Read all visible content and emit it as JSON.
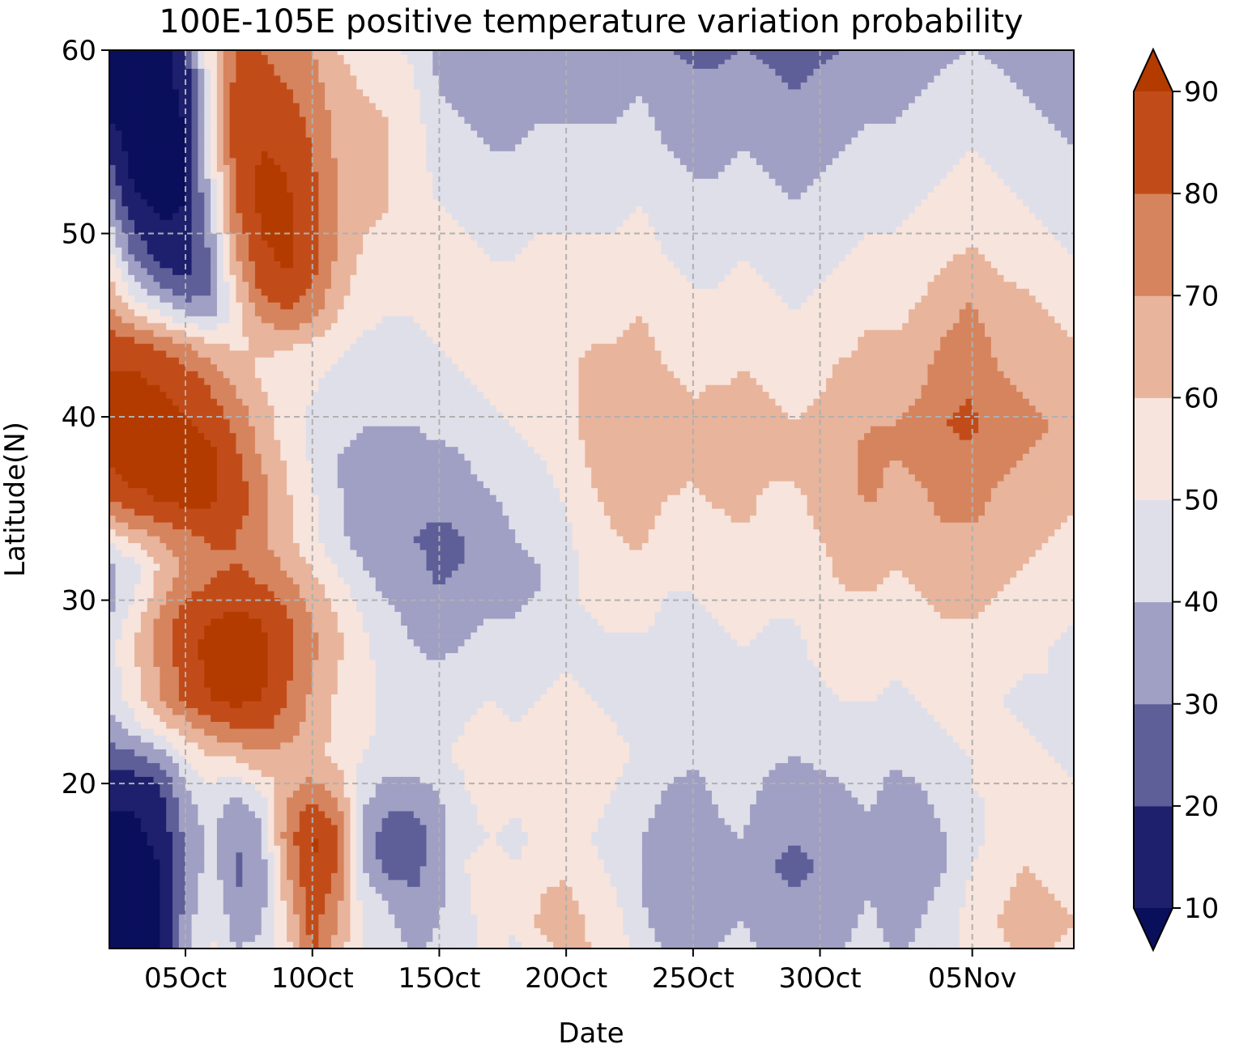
{
  "chart_data": {
    "type": "heatmap",
    "title": "100E-105E positive temperature variation probability",
    "xlabel": "Date",
    "ylabel": "Latitude(N)",
    "x_ticks": [
      "05Oct",
      "10Oct",
      "15Oct",
      "20Oct",
      "25Oct",
      "30Oct",
      "05Nov"
    ],
    "x_tick_dates": [
      "2020-10-05",
      "2020-10-10",
      "2020-10-15",
      "2020-10-20",
      "2020-10-25",
      "2020-10-30",
      "2020-11-05"
    ],
    "xlim": [
      "2020-10-02",
      "2020-11-09"
    ],
    "y_ticks": [
      20,
      30,
      40,
      50,
      60
    ],
    "ylim": [
      11,
      60
    ],
    "grid": true,
    "colorbar": {
      "levels": [
        10,
        20,
        30,
        40,
        50,
        60,
        70,
        80,
        90
      ],
      "tick_labels": [
        "10",
        "20",
        "30",
        "40",
        "50",
        "60",
        "70",
        "80",
        "90"
      ],
      "colors": [
        "#0a0f5c",
        "#1e206e",
        "#5e5f99",
        "#a09fc4",
        "#dfdfea",
        "#f7e4dc",
        "#e8b49b",
        "#d6845e",
        "#c24c19",
        "#b43b00"
      ],
      "extend": "both"
    },
    "grid_days": [
      2,
      3,
      4,
      5,
      6,
      7,
      8,
      9,
      10,
      11,
      12,
      13,
      14,
      15,
      16,
      17,
      18,
      19,
      20,
      21,
      22,
      23,
      24,
      25,
      26,
      27,
      28,
      29,
      30,
      31,
      32,
      33,
      34,
      35,
      36,
      37,
      38,
      39,
      40
    ],
    "grid_latitudes": [
      11,
      12.5,
      14,
      15.5,
      17,
      18.5,
      20,
      21.5,
      23,
      24.5,
      26,
      27.5,
      29,
      30.5,
      32,
      33.5,
      35,
      36.5,
      38,
      39.5,
      41,
      42.5,
      44,
      45.5,
      47,
      48.5,
      50,
      51.5,
      53,
      54.5,
      56,
      57.5,
      59,
      60
    ],
    "z": [
      [
        5,
        5,
        8,
        38,
        52,
        40,
        42,
        55,
        82,
        65,
        50,
        45,
        38,
        42,
        45,
        55,
        48,
        58,
        62,
        60,
        55,
        45,
        38,
        35,
        40,
        42,
        38,
        35,
        38,
        40,
        45,
        38,
        42,
        48,
        52,
        58,
        62,
        60,
        58
      ],
      [
        5,
        5,
        8,
        35,
        50,
        35,
        38,
        60,
        85,
        70,
        50,
        42,
        35,
        40,
        45,
        58,
        50,
        62,
        65,
        58,
        52,
        42,
        35,
        32,
        38,
        40,
        35,
        32,
        35,
        38,
        42,
        35,
        40,
        45,
        55,
        60,
        65,
        62,
        60
      ],
      [
        5,
        5,
        8,
        30,
        48,
        30,
        35,
        65,
        88,
        75,
        45,
        38,
        30,
        38,
        48,
        55,
        52,
        60,
        62,
        55,
        50,
        40,
        32,
        30,
        35,
        38,
        32,
        30,
        32,
        35,
        40,
        32,
        38,
        42,
        52,
        58,
        62,
        60,
        58
      ],
      [
        5,
        5,
        10,
        30,
        45,
        28,
        35,
        70,
        90,
        80,
        40,
        25,
        25,
        38,
        50,
        52,
        50,
        55,
        58,
        52,
        48,
        40,
        32,
        30,
        35,
        38,
        30,
        28,
        30,
        35,
        40,
        30,
        35,
        40,
        50,
        55,
        60,
        58,
        55
      ],
      [
        8,
        8,
        12,
        32,
        42,
        30,
        38,
        75,
        92,
        82,
        38,
        22,
        22,
        35,
        48,
        50,
        48,
        52,
        55,
        50,
        45,
        40,
        35,
        32,
        38,
        40,
        32,
        30,
        32,
        35,
        38,
        32,
        35,
        40,
        48,
        52,
        58,
        55,
        52
      ],
      [
        10,
        10,
        15,
        35,
        45,
        35,
        42,
        72,
        85,
        75,
        40,
        30,
        30,
        38,
        48,
        52,
        50,
        55,
        58,
        52,
        48,
        42,
        38,
        35,
        40,
        42,
        35,
        32,
        35,
        38,
        40,
        35,
        38,
        42,
        48,
        52,
        55,
        52,
        50
      ],
      [
        15,
        15,
        20,
        40,
        50,
        45,
        55,
        65,
        72,
        65,
        45,
        38,
        38,
        42,
        50,
        55,
        52,
        58,
        60,
        55,
        50,
        45,
        40,
        38,
        42,
        45,
        38,
        35,
        38,
        40,
        42,
        38,
        40,
        45,
        50,
        52,
        55,
        52,
        50
      ],
      [
        25,
        28,
        35,
        50,
        60,
        62,
        68,
        65,
        62,
        58,
        50,
        45,
        45,
        48,
        52,
        55,
        52,
        55,
        58,
        55,
        52,
        48,
        45,
        42,
        45,
        48,
        42,
        40,
        42,
        45,
        45,
        42,
        45,
        48,
        50,
        52,
        52,
        50,
        48
      ],
      [
        35,
        45,
        55,
        65,
        75,
        80,
        82,
        75,
        65,
        58,
        52,
        48,
        45,
        48,
        50,
        52,
        50,
        52,
        55,
        52,
        50,
        48,
        45,
        45,
        48,
        50,
        45,
        42,
        45,
        48,
        48,
        45,
        48,
        50,
        52,
        52,
        50,
        48,
        48
      ],
      [
        42,
        55,
        68,
        82,
        90,
        92,
        90,
        80,
        68,
        58,
        52,
        48,
        42,
        45,
        48,
        50,
        48,
        50,
        52,
        50,
        48,
        48,
        45,
        45,
        48,
        50,
        48,
        45,
        48,
        50,
        50,
        48,
        50,
        52,
        52,
        50,
        48,
        48,
        48
      ],
      [
        45,
        58,
        70,
        85,
        92,
        95,
        92,
        82,
        70,
        60,
        52,
        48,
        42,
        42,
        45,
        48,
        45,
        48,
        50,
        48,
        48,
        48,
        45,
        45,
        48,
        50,
        48,
        48,
        50,
        52,
        52,
        50,
        52,
        55,
        55,
        52,
        50,
        50,
        48
      ],
      [
        45,
        60,
        75,
        88,
        92,
        95,
        92,
        85,
        72,
        62,
        52,
        45,
        40,
        38,
        40,
        45,
        42,
        45,
        48,
        48,
        48,
        48,
        45,
        45,
        48,
        50,
        48,
        48,
        52,
        55,
        55,
        52,
        55,
        58,
        58,
        55,
        52,
        50,
        48
      ],
      [
        40,
        55,
        72,
        85,
        90,
        92,
        90,
        82,
        70,
        60,
        50,
        42,
        38,
        32,
        35,
        40,
        40,
        42,
        48,
        50,
        52,
        52,
        48,
        48,
        50,
        52,
        50,
        50,
        55,
        58,
        58,
        55,
        58,
        60,
        60,
        58,
        55,
        52,
        50
      ],
      [
        35,
        48,
        65,
        78,
        82,
        85,
        82,
        75,
        65,
        55,
        45,
        38,
        35,
        30,
        32,
        38,
        38,
        40,
        48,
        52,
        55,
        55,
        50,
        50,
        52,
        55,
        52,
        52,
        58,
        60,
        60,
        58,
        60,
        62,
        62,
        60,
        58,
        55,
        52
      ],
      [
        38,
        48,
        60,
        72,
        78,
        80,
        75,
        68,
        58,
        48,
        40,
        32,
        32,
        28,
        30,
        35,
        38,
        40,
        48,
        52,
        58,
        58,
        52,
        52,
        55,
        55,
        52,
        52,
        58,
        62,
        62,
        60,
        62,
        65,
        65,
        62,
        60,
        58,
        55
      ],
      [
        55,
        65,
        72,
        78,
        82,
        80,
        72,
        62,
        52,
        42,
        35,
        30,
        30,
        28,
        30,
        35,
        40,
        42,
        48,
        55,
        60,
        62,
        55,
        55,
        58,
        58,
        55,
        55,
        60,
        65,
        65,
        62,
        65,
        68,
        68,
        65,
        62,
        60,
        58
      ],
      [
        75,
        82,
        88,
        90,
        90,
        85,
        75,
        62,
        52,
        42,
        35,
        32,
        32,
        32,
        32,
        38,
        42,
        45,
        50,
        58,
        62,
        65,
        58,
        58,
        60,
        62,
        58,
        58,
        62,
        68,
        70,
        65,
        68,
        72,
        72,
        68,
        65,
        62,
        60
      ],
      [
        88,
        92,
        95,
        95,
        92,
        85,
        72,
        60,
        50,
        40,
        35,
        35,
        35,
        35,
        38,
        42,
        45,
        48,
        52,
        60,
        65,
        68,
        62,
        60,
        62,
        62,
        60,
        60,
        62,
        68,
        72,
        68,
        70,
        75,
        75,
        70,
        68,
        65,
        62
      ],
      [
        92,
        95,
        95,
        95,
        92,
        82,
        68,
        58,
        48,
        40,
        38,
        38,
        38,
        38,
        40,
        45,
        48,
        50,
        55,
        62,
        68,
        70,
        65,
        62,
        65,
        65,
        62,
        60,
        62,
        68,
        72,
        70,
        72,
        78,
        78,
        72,
        70,
        68,
        65
      ],
      [
        92,
        95,
        95,
        92,
        88,
        78,
        65,
        55,
        48,
        42,
        40,
        40,
        40,
        42,
        45,
        48,
        50,
        52,
        58,
        62,
        68,
        70,
        65,
        62,
        65,
        65,
        62,
        60,
        62,
        68,
        70,
        70,
        72,
        80,
        82,
        75,
        72,
        70,
        68
      ],
      [
        92,
        92,
        92,
        88,
        82,
        72,
        62,
        55,
        50,
        45,
        42,
        42,
        42,
        45,
        48,
        50,
        52,
        55,
        58,
        62,
        65,
        68,
        62,
        60,
        62,
        62,
        60,
        58,
        60,
        65,
        68,
        68,
        70,
        78,
        80,
        72,
        70,
        68,
        65
      ],
      [
        90,
        90,
        88,
        82,
        75,
        65,
        58,
        55,
        52,
        48,
        45,
        45,
        45,
        48,
        50,
        52,
        52,
        55,
        58,
        62,
        62,
        65,
        60,
        58,
        58,
        60,
        58,
        55,
        58,
        62,
        65,
        65,
        68,
        75,
        78,
        70,
        68,
        65,
        62
      ],
      [
        85,
        82,
        78,
        70,
        62,
        58,
        62,
        62,
        58,
        52,
        48,
        48,
        48,
        50,
        52,
        52,
        52,
        55,
        58,
        60,
        60,
        62,
        58,
        55,
        55,
        58,
        55,
        52,
        55,
        58,
        62,
        62,
        65,
        72,
        75,
        68,
        65,
        62,
        60
      ],
      [
        75,
        62,
        52,
        42,
        38,
        55,
        72,
        78,
        72,
        60,
        52,
        50,
        50,
        52,
        52,
        52,
        52,
        55,
        58,
        58,
        58,
        60,
        55,
        52,
        52,
        55,
        52,
        50,
        52,
        55,
        58,
        58,
        62,
        68,
        72,
        65,
        62,
        60,
        58
      ],
      [
        65,
        45,
        32,
        22,
        28,
        60,
        82,
        88,
        80,
        65,
        55,
        52,
        52,
        52,
        52,
        52,
        52,
        55,
        55,
        55,
        55,
        58,
        52,
        50,
        50,
        52,
        50,
        48,
        50,
        52,
        55,
        55,
        58,
        65,
        68,
        62,
        60,
        58,
        55
      ],
      [
        55,
        30,
        18,
        15,
        30,
        68,
        88,
        92,
        85,
        68,
        58,
        55,
        55,
        52,
        52,
        50,
        50,
        52,
        52,
        52,
        52,
        55,
        50,
        48,
        48,
        50,
        48,
        45,
        48,
        50,
        52,
        52,
        55,
        60,
        62,
        58,
        55,
        52,
        50
      ],
      [
        45,
        20,
        12,
        12,
        35,
        75,
        90,
        92,
        85,
        70,
        60,
        58,
        55,
        52,
        50,
        48,
        48,
        50,
        50,
        50,
        50,
        52,
        48,
        45,
        45,
        48,
        45,
        42,
        45,
        48,
        50,
        50,
        52,
        55,
        58,
        55,
        52,
        50,
        48
      ],
      [
        35,
        12,
        8,
        10,
        40,
        80,
        92,
        92,
        85,
        70,
        62,
        60,
        55,
        50,
        48,
        45,
        45,
        48,
        48,
        48,
        48,
        50,
        45,
        42,
        42,
        45,
        42,
        40,
        42,
        45,
        48,
        48,
        50,
        52,
        55,
        52,
        50,
        48,
        45
      ],
      [
        25,
        8,
        5,
        8,
        45,
        82,
        92,
        90,
        82,
        70,
        62,
        60,
        55,
        48,
        45,
        42,
        42,
        45,
        45,
        45,
        45,
        48,
        42,
        40,
        40,
        42,
        40,
        38,
        40,
        42,
        45,
        45,
        48,
        50,
        52,
        50,
        48,
        45,
        42
      ],
      [
        18,
        5,
        5,
        8,
        48,
        85,
        90,
        88,
        80,
        68,
        62,
        60,
        55,
        45,
        42,
        40,
        40,
        42,
        42,
        42,
        42,
        45,
        40,
        38,
        38,
        40,
        38,
        35,
        38,
        40,
        42,
        42,
        45,
        48,
        50,
        48,
        45,
        42,
        40
      ],
      [
        10,
        5,
        5,
        10,
        50,
        85,
        88,
        85,
        78,
        68,
        62,
        60,
        55,
        42,
        40,
        38,
        38,
        40,
        40,
        40,
        40,
        42,
        38,
        35,
        35,
        38,
        35,
        32,
        35,
        38,
        40,
        40,
        42,
        45,
        48,
        45,
        42,
        40,
        38
      ],
      [
        5,
        5,
        5,
        12,
        52,
        85,
        85,
        82,
        75,
        65,
        60,
        58,
        52,
        40,
        38,
        35,
        35,
        38,
        38,
        38,
        38,
        40,
        35,
        32,
        32,
        35,
        32,
        30,
        32,
        35,
        38,
        38,
        40,
        42,
        45,
        42,
        40,
        38,
        35
      ],
      [
        5,
        5,
        5,
        15,
        55,
        82,
        82,
        78,
        72,
        62,
        58,
        55,
        50,
        38,
        35,
        32,
        32,
        35,
        35,
        35,
        35,
        38,
        32,
        30,
        30,
        32,
        30,
        28,
        30,
        32,
        35,
        35,
        38,
        40,
        42,
        40,
        38,
        35,
        32
      ],
      [
        5,
        5,
        5,
        15,
        55,
        80,
        80,
        75,
        70,
        60,
        55,
        52,
        48,
        35,
        32,
        30,
        30,
        32,
        32,
        32,
        32,
        35,
        30,
        28,
        28,
        30,
        28,
        25,
        28,
        30,
        32,
        32,
        35,
        38,
        40,
        38,
        35,
        32,
        30
      ]
    ]
  }
}
